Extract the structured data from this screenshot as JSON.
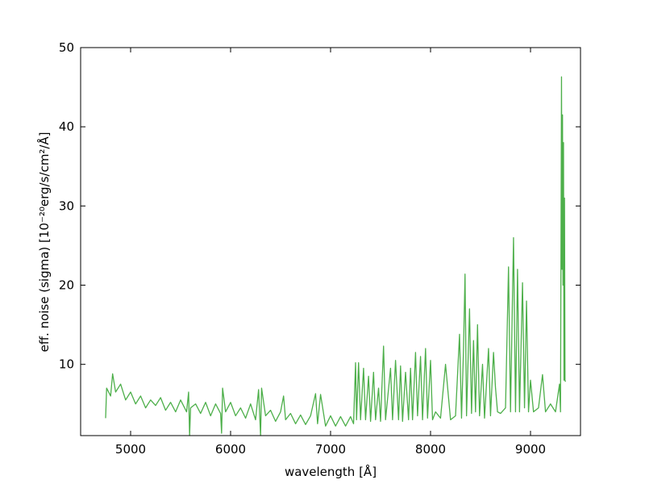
{
  "chart_data": {
    "type": "line",
    "x_label": "wavelength [Å]",
    "y_label": "eff. noise  (sigma)  [10⁻²⁰erg/s/cm²/Å]",
    "color": "#4daf4a",
    "xlim": [
      4500,
      9500
    ],
    "xticks": [
      5000,
      6000,
      7000,
      8000,
      9000
    ],
    "ylim": [
      1,
      50
    ],
    "yticks": [
      10,
      20,
      30,
      40,
      50
    ],
    "x": [
      4750,
      4760,
      4800,
      4820,
      4850,
      4900,
      4950,
      5000,
      5050,
      5100,
      5150,
      5200,
      5250,
      5300,
      5350,
      5400,
      5450,
      5500,
      5560,
      5580,
      5590,
      5600,
      5650,
      5700,
      5750,
      5800,
      5850,
      5900,
      5910,
      5920,
      5950,
      6000,
      6050,
      6100,
      6150,
      6200,
      6250,
      6280,
      6300,
      6310,
      6350,
      6400,
      6450,
      6500,
      6530,
      6550,
      6600,
      6650,
      6700,
      6750,
      6800,
      6850,
      6870,
      6900,
      6950,
      7000,
      7050,
      7100,
      7150,
      7200,
      7230,
      7250,
      7260,
      7280,
      7300,
      7330,
      7350,
      7380,
      7400,
      7430,
      7450,
      7480,
      7500,
      7530,
      7550,
      7600,
      7620,
      7650,
      7680,
      7700,
      7720,
      7750,
      7780,
      7800,
      7820,
      7850,
      7870,
      7900,
      7920,
      7950,
      7970,
      8000,
      8020,
      8050,
      8100,
      8150,
      8200,
      8250,
      8290,
      8310,
      8330,
      8345,
      8360,
      8390,
      8410,
      8430,
      8450,
      8470,
      8490,
      8520,
      8540,
      8580,
      8600,
      8630,
      8650,
      8670,
      8700,
      8750,
      8780,
      8800,
      8830,
      8850,
      8870,
      8890,
      8920,
      8940,
      8960,
      8980,
      9000,
      9030,
      9080,
      9120,
      9150,
      9200,
      9250,
      9290,
      9300,
      9310,
      9315,
      9320,
      9325,
      9330,
      9335,
      9340,
      9345,
      9350
    ],
    "values": [
      3.2,
      7.0,
      6.0,
      8.8,
      6.5,
      7.5,
      5.5,
      6.5,
      5.0,
      6.0,
      4.5,
      5.5,
      4.8,
      5.8,
      4.2,
      5.2,
      4.0,
      5.5,
      4.0,
      6.5,
      1.0,
      4.5,
      5.0,
      3.8,
      5.2,
      3.5,
      5.0,
      3.8,
      1.3,
      7.0,
      4.0,
      5.2,
      3.5,
      4.5,
      3.2,
      5.0,
      3.0,
      6.8,
      1.0,
      7.0,
      3.5,
      4.2,
      2.8,
      4.0,
      6.0,
      3.0,
      3.8,
      2.5,
      3.6,
      2.4,
      3.5,
      6.3,
      2.5,
      6.2,
      2.2,
      3.5,
      2.2,
      3.4,
      2.2,
      3.4,
      2.5,
      10.2,
      3.0,
      10.2,
      3.0,
      9.5,
      3.0,
      8.5,
      2.8,
      9.0,
      3.0,
      7.0,
      2.8,
      12.3,
      3.0,
      9.5,
      3.0,
      10.5,
      3.0,
      9.8,
      2.8,
      9.0,
      3.0,
      9.5,
      3.0,
      11.5,
      3.5,
      11.0,
      3.0,
      12.0,
      3.2,
      10.5,
      3.0,
      4.0,
      3.2,
      10.0,
      3.0,
      3.5,
      13.8,
      3.2,
      12.0,
      21.4,
      3.5,
      17.0,
      3.8,
      13.0,
      4.0,
      15.0,
      3.5,
      10.0,
      3.2,
      12.0,
      3.5,
      11.5,
      7.0,
      4.0,
      3.8,
      4.5,
      22.3,
      4.0,
      26.0,
      4.0,
      22.0,
      4.0,
      20.3,
      4.5,
      18.0,
      4.0,
      8.0,
      4.0,
      4.5,
      8.7,
      4.0,
      5.0,
      4.0,
      7.5,
      4.0,
      46.3,
      22.0,
      41.5,
      20.0,
      38.0,
      8.0,
      31.0,
      8.0,
      7.8
    ]
  }
}
